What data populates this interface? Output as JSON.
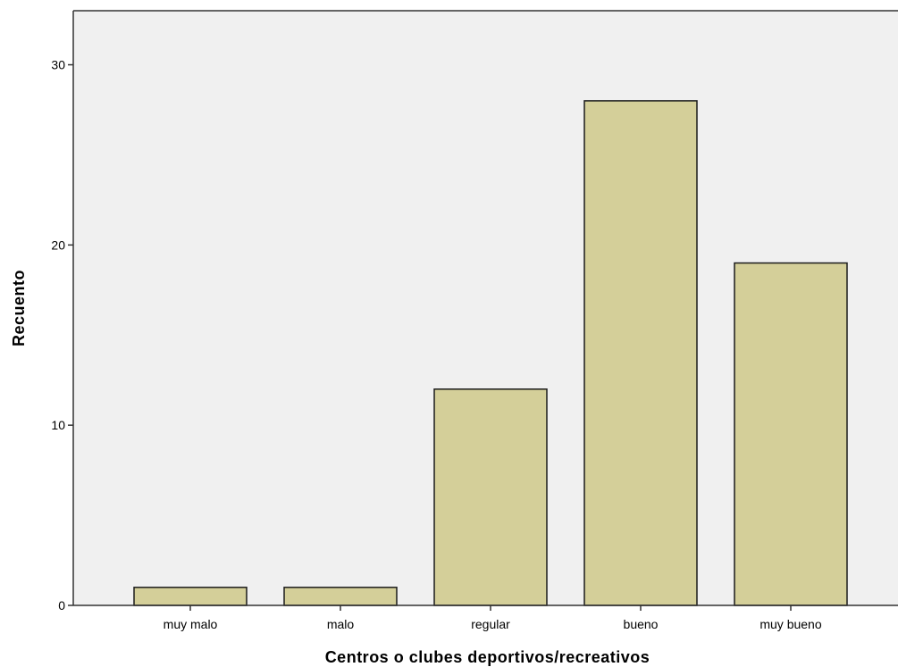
{
  "chart_data": {
    "type": "bar",
    "categories": [
      "muy malo",
      "malo",
      "regular",
      "bueno",
      "muy bueno"
    ],
    "values": [
      1,
      1,
      12,
      28,
      19
    ],
    "title": "",
    "xlabel": "Centros o clubes deportivos/recreativos",
    "ylabel": "Recuento",
    "ylim": [
      0,
      33
    ],
    "yticks": [
      0,
      10,
      20,
      30
    ],
    "grid": false,
    "colors": {
      "bar_fill": "#d4cf99",
      "bar_stroke": "#1a1a1a",
      "plot_background": "#f0f0f0",
      "axis": "#333333"
    }
  }
}
